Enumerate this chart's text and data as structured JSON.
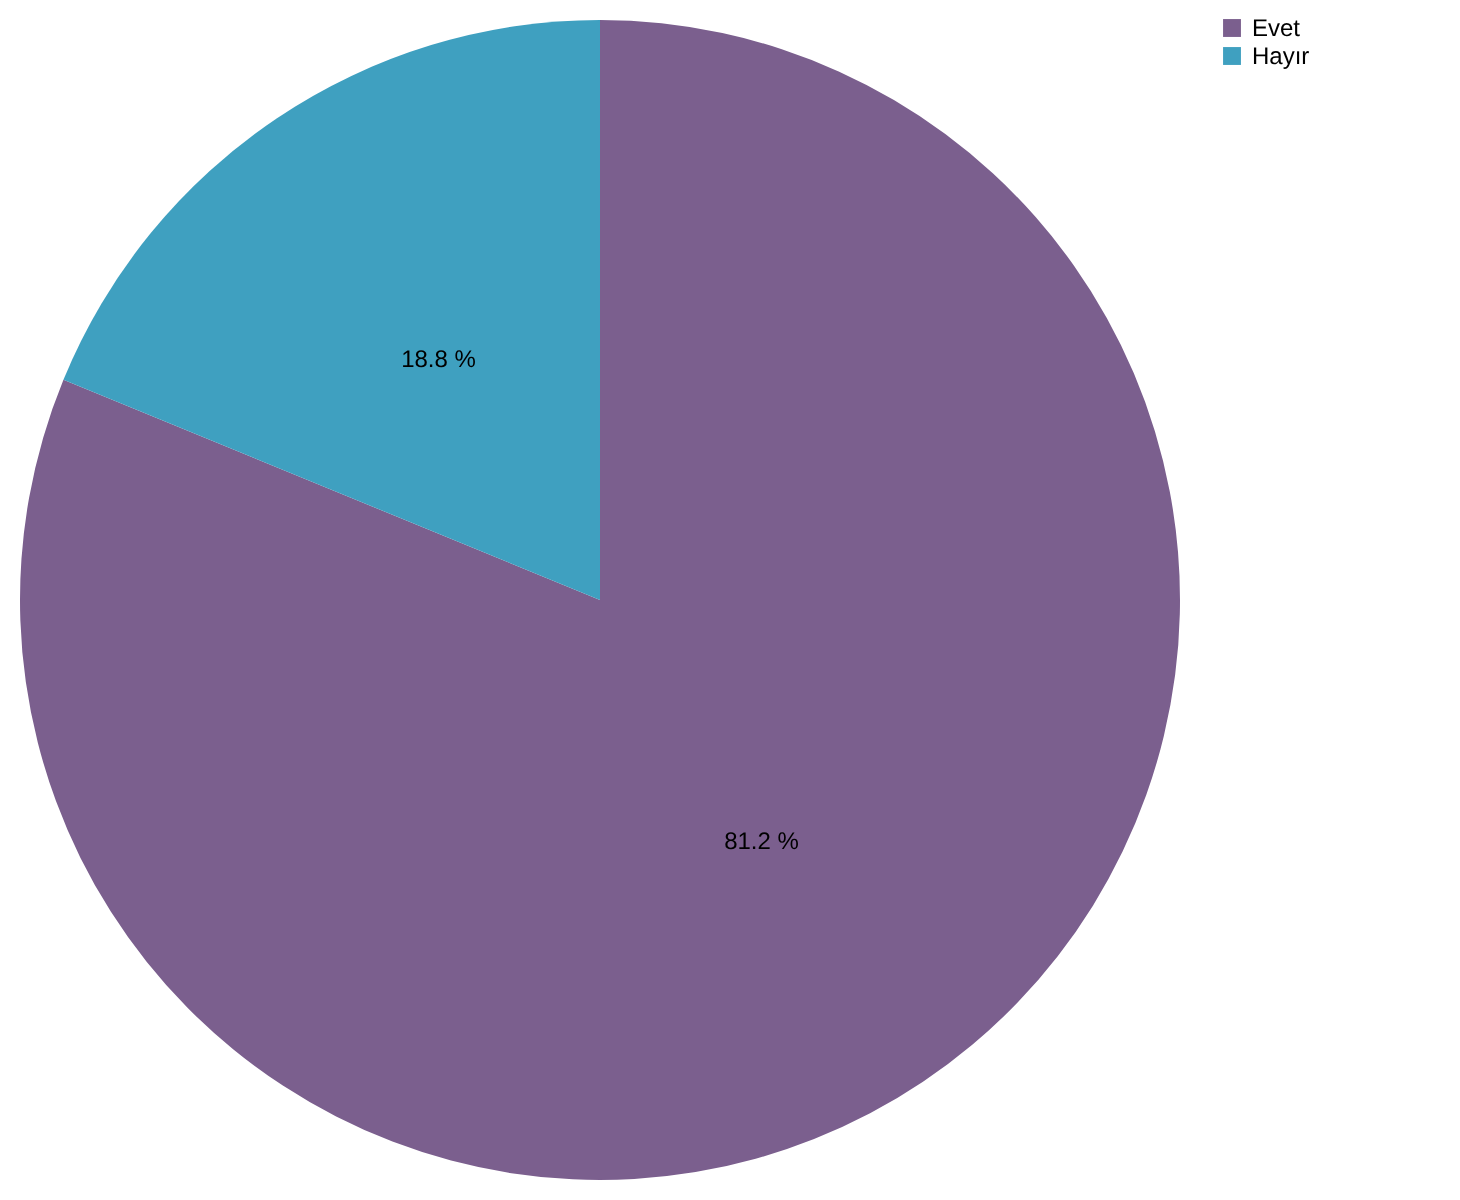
{
  "chart_data": {
    "type": "pie",
    "categories": [
      "Evet",
      "Hayır"
    ],
    "values": [
      81.2,
      18.8
    ],
    "colors": [
      "#7b5f8e",
      "#3fa0c0"
    ],
    "value_labels": [
      "81.2 %",
      "18.8 %"
    ],
    "legend": "right"
  }
}
